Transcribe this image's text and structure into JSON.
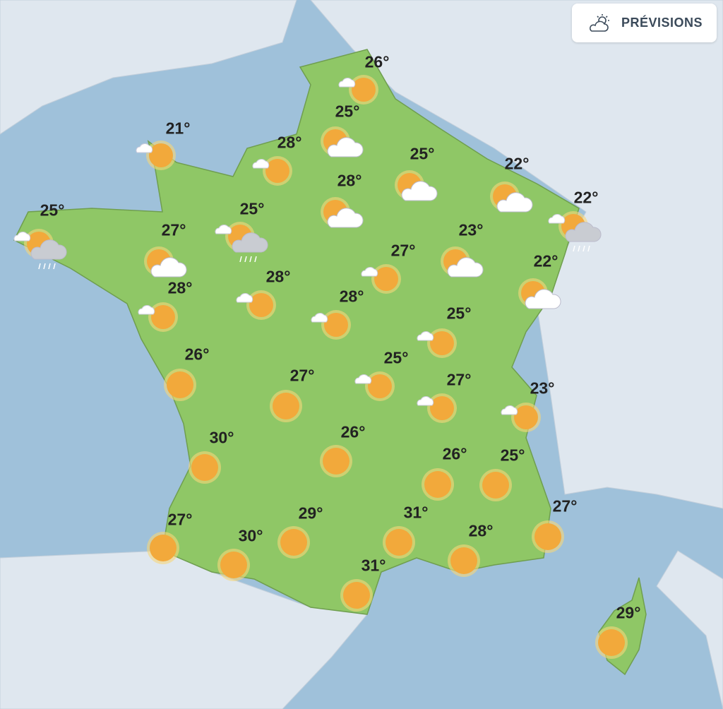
{
  "forecast_button": {
    "label": "PRÉVISIONS",
    "icon": "cloud-sun-icon"
  },
  "colors": {
    "sea": "#9fc1da",
    "land_other": "#dfe7ef",
    "france": "#8fc766",
    "sun": "#f2a93b",
    "text": "#222222"
  },
  "markers": [
    {
      "temp": "26°",
      "icon": "sun-small-cloud"
    },
    {
      "temp": "25°",
      "icon": "sun-cloud"
    },
    {
      "temp": "21°",
      "icon": "sun-small-cloud"
    },
    {
      "temp": "28°",
      "icon": "sun-small-cloud"
    },
    {
      "temp": "25°",
      "icon": "sun-cloud"
    },
    {
      "temp": "22°",
      "icon": "sun-cloud"
    },
    {
      "temp": "28°",
      "icon": "sun-cloud"
    },
    {
      "temp": "25°",
      "icon": "sun-cloud-rain"
    },
    {
      "temp": "25°",
      "icon": "sun-cloud-rain"
    },
    {
      "temp": "22°",
      "icon": "sun-cloud-rain"
    },
    {
      "temp": "27°",
      "icon": "sun-cloud"
    },
    {
      "temp": "23°",
      "icon": "sun-cloud"
    },
    {
      "temp": "27°",
      "icon": "sun-small-cloud"
    },
    {
      "temp": "22°",
      "icon": "sun-cloud"
    },
    {
      "temp": "28°",
      "icon": "sun-small-cloud"
    },
    {
      "temp": "28°",
      "icon": "sun-small-cloud"
    },
    {
      "temp": "28°",
      "icon": "sun-small-cloud"
    },
    {
      "temp": "25°",
      "icon": "sun-small-cloud"
    },
    {
      "temp": "26°",
      "icon": "sun"
    },
    {
      "temp": "27°",
      "icon": "sun"
    },
    {
      "temp": "25°",
      "icon": "sun-small-cloud"
    },
    {
      "temp": "27°",
      "icon": "sun-small-cloud"
    },
    {
      "temp": "23°",
      "icon": "sun-small-cloud"
    },
    {
      "temp": "30°",
      "icon": "sun"
    },
    {
      "temp": "26°",
      "icon": "sun"
    },
    {
      "temp": "26°",
      "icon": "sun"
    },
    {
      "temp": "25°",
      "icon": "sun"
    },
    {
      "temp": "27°",
      "icon": "sun"
    },
    {
      "temp": "29°",
      "icon": "sun"
    },
    {
      "temp": "31°",
      "icon": "sun"
    },
    {
      "temp": "27°",
      "icon": "sun"
    },
    {
      "temp": "30°",
      "icon": "sun"
    },
    {
      "temp": "28°",
      "icon": "sun"
    },
    {
      "temp": "31°",
      "icon": "sun"
    },
    {
      "temp": "29°",
      "icon": "sun"
    }
  ]
}
